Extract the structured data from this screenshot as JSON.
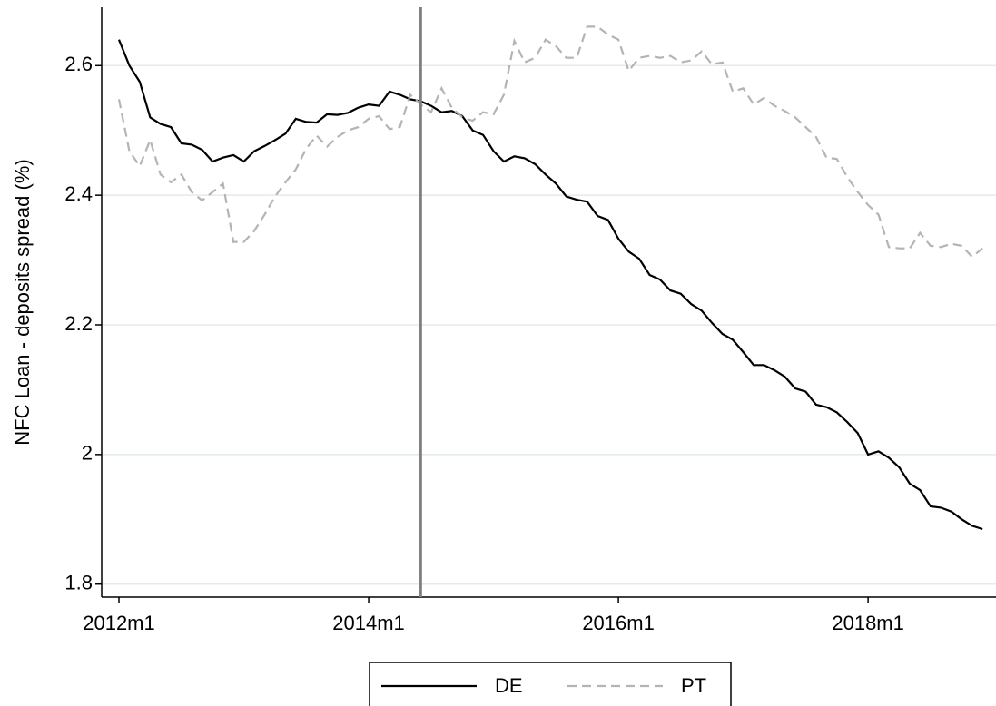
{
  "chart_data": {
    "type": "line",
    "y_label": "NFC Loan - deposits spread (%)",
    "x": [
      "2012m1",
      "2012m2",
      "2012m3",
      "2012m4",
      "2012m5",
      "2012m6",
      "2012m7",
      "2012m8",
      "2012m9",
      "2012m10",
      "2012m11",
      "2012m12",
      "2013m1",
      "2013m2",
      "2013m3",
      "2013m4",
      "2013m5",
      "2013m6",
      "2013m7",
      "2013m8",
      "2013m9",
      "2013m10",
      "2013m11",
      "2013m12",
      "2014m1",
      "2014m2",
      "2014m3",
      "2014m4",
      "2014m5",
      "2014m6",
      "2014m7",
      "2014m8",
      "2014m9",
      "2014m10",
      "2014m11",
      "2014m12",
      "2015m1",
      "2015m2",
      "2015m3",
      "2015m4",
      "2015m5",
      "2015m6",
      "2015m7",
      "2015m8",
      "2015m9",
      "2015m10",
      "2015m11",
      "2015m12",
      "2016m1",
      "2016m2",
      "2016m3",
      "2016m4",
      "2016m5",
      "2016m6",
      "2016m7",
      "2016m8",
      "2016m9",
      "2016m10",
      "2016m11",
      "2016m12",
      "2017m1",
      "2017m2",
      "2017m3",
      "2017m4",
      "2017m5",
      "2017m6",
      "2017m7",
      "2017m8",
      "2017m9",
      "2017m10",
      "2017m11",
      "2017m12",
      "2018m1",
      "2018m2",
      "2018m3",
      "2018m4",
      "2018m5",
      "2018m6",
      "2018m7",
      "2018m8",
      "2018m9",
      "2018m10",
      "2018m11",
      "2018m12"
    ],
    "series": [
      {
        "name": "DE",
        "color": "#000000",
        "dash": false,
        "values": [
          2.64,
          2.6,
          2.575,
          2.52,
          2.51,
          2.505,
          2.48,
          2.478,
          2.47,
          2.452,
          2.458,
          2.462,
          2.452,
          2.468,
          2.476,
          2.485,
          2.495,
          2.518,
          2.513,
          2.512,
          2.525,
          2.524,
          2.527,
          2.535,
          2.54,
          2.538,
          2.56,
          2.555,
          2.548,
          2.545,
          2.538,
          2.528,
          2.53,
          2.522,
          2.5,
          2.493,
          2.468,
          2.452,
          2.46,
          2.457,
          2.448,
          2.432,
          2.418,
          2.398,
          2.393,
          2.39,
          2.368,
          2.362,
          2.333,
          2.313,
          2.302,
          2.277,
          2.27,
          2.253,
          2.248,
          2.232,
          2.222,
          2.203,
          2.186,
          2.177,
          2.158,
          2.138,
          2.138,
          2.13,
          2.12,
          2.102,
          2.097,
          2.077,
          2.073,
          2.065,
          2.05,
          2.033,
          2.0,
          2.005,
          1.995,
          1.98,
          1.955,
          1.945,
          1.92,
          1.918,
          1.912,
          1.9,
          1.89,
          1.885
        ]
      },
      {
        "name": "PT",
        "color": "#b4b4b4",
        "dash": true,
        "values": [
          2.548,
          2.468,
          2.445,
          2.485,
          2.432,
          2.42,
          2.432,
          2.405,
          2.392,
          2.405,
          2.418,
          2.328,
          2.328,
          2.345,
          2.37,
          2.398,
          2.42,
          2.44,
          2.472,
          2.492,
          2.475,
          2.49,
          2.5,
          2.505,
          2.518,
          2.522,
          2.502,
          2.505,
          2.555,
          2.54,
          2.528,
          2.565,
          2.535,
          2.52,
          2.515,
          2.528,
          2.525,
          2.555,
          2.638,
          2.605,
          2.612,
          2.64,
          2.63,
          2.612,
          2.612,
          2.66,
          2.66,
          2.648,
          2.64,
          2.592,
          2.612,
          2.615,
          2.612,
          2.615,
          2.605,
          2.608,
          2.622,
          2.602,
          2.605,
          2.56,
          2.565,
          2.54,
          2.55,
          2.538,
          2.53,
          2.52,
          2.505,
          2.49,
          2.458,
          2.456,
          2.428,
          2.405,
          2.385,
          2.37,
          2.32,
          2.318,
          2.318,
          2.342,
          2.322,
          2.32,
          2.325,
          2.322,
          2.305,
          2.318
        ]
      }
    ],
    "ylim": [
      1.78,
      2.69
    ],
    "yticks": [
      1.8,
      2,
      2.2,
      2.4,
      2.6
    ],
    "xticks": [
      "2012m1",
      "2014m1",
      "2016m1",
      "2018m1"
    ],
    "vline": "2014m6",
    "grid": true,
    "legend": "bottom"
  }
}
